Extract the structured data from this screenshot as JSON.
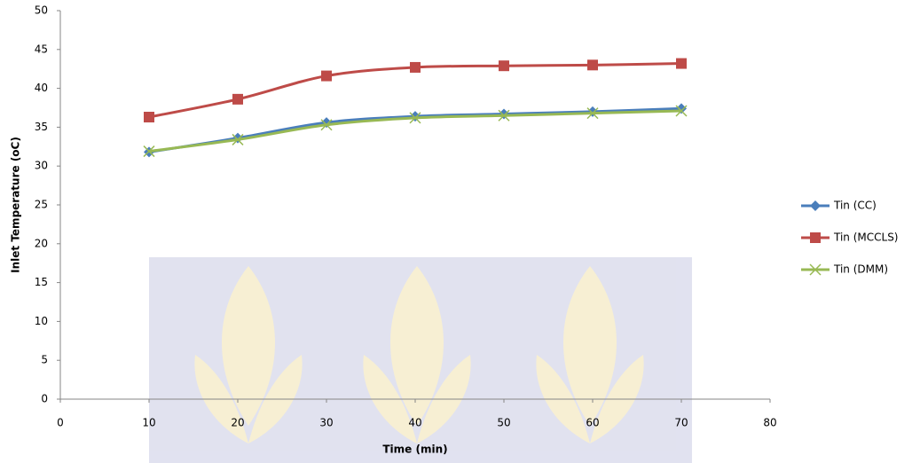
{
  "chart_data": {
    "type": "line",
    "x_label": "Time (min)",
    "y_label": "Inlet Temperature (oC)",
    "x": [
      10,
      20,
      30,
      40,
      50,
      60,
      70
    ],
    "series": [
      {
        "name": "Tin (CC)",
        "color": "#4a7ebb",
        "marker": "diamond",
        "values": [
          31.8,
          33.6,
          35.6,
          36.4,
          36.7,
          37.0,
          37.4
        ]
      },
      {
        "name": "Tin (MCCLS)",
        "color": "#be4b48",
        "marker": "square",
        "values": [
          36.3,
          38.6,
          41.6,
          42.7,
          42.9,
          43.0,
          43.2
        ]
      },
      {
        "name": "Tin (DMM)",
        "color": "#98b954",
        "marker": "x",
        "values": [
          31.9,
          33.4,
          35.3,
          36.2,
          36.5,
          36.8,
          37.1
        ]
      }
    ],
    "xlim": [
      0,
      80
    ],
    "xticks": [
      0,
      10,
      20,
      30,
      40,
      50,
      60,
      70,
      80
    ],
    "ylim": [
      0,
      50
    ],
    "yticks": [
      0,
      5,
      10,
      15,
      20,
      25,
      30,
      35,
      40,
      45,
      50
    ],
    "grid": false,
    "legend": "right"
  }
}
